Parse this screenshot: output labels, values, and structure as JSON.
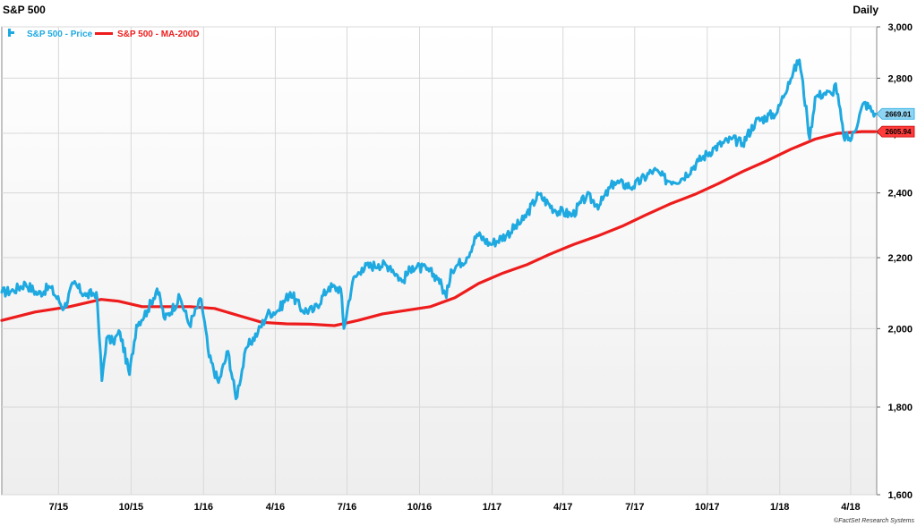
{
  "header": {
    "title": "S&P 500",
    "frequency": "Daily"
  },
  "credit": "©FactSet Research Systems",
  "colors": {
    "price": "#1fa9e1",
    "ma": "#ee1c1c",
    "grid": "#d8d8d8",
    "plot_top": "#ffffff",
    "plot_bottom": "#eeeeee"
  },
  "chart_data": {
    "type": "line",
    "title": "S&P 500",
    "frequency": "Daily",
    "y_scale": "log",
    "ylim": [
      1600,
      3000
    ],
    "y_ticks": [
      1600,
      1800,
      2000,
      2200,
      2400,
      2600,
      2800,
      3000
    ],
    "y_tick_labels": [
      "1,600",
      "1,800",
      "2,000",
      "2,200",
      "2,400",
      "2,600",
      "2,800",
      "3,000"
    ],
    "xlim": [
      "2015-04-20",
      "2018-05-04"
    ],
    "x_ticks": [
      "2015-07-01",
      "2015-10-01",
      "2016-01-01",
      "2016-04-01",
      "2016-07-01",
      "2016-10-01",
      "2017-01-01",
      "2017-04-01",
      "2017-07-01",
      "2017-10-01",
      "2018-01-01",
      "2018-04-01"
    ],
    "x_tick_labels": [
      "7/15",
      "10/15",
      "1/16",
      "4/16",
      "7/16",
      "10/16",
      "1/17",
      "4/17",
      "7/17",
      "10/17",
      "1/18",
      "4/18"
    ],
    "grid": true,
    "legend_position": "top-left",
    "series": [
      {
        "name": "S&P 500 - Price",
        "color": "#1fa9e1",
        "last_value_label": "2669.01",
        "points": [
          [
            "2015-04-20",
            2100
          ],
          [
            "2015-05-05",
            2105
          ],
          [
            "2015-05-20",
            2125
          ],
          [
            "2015-06-05",
            2095
          ],
          [
            "2015-06-20",
            2115
          ],
          [
            "2015-07-08",
            2055
          ],
          [
            "2015-07-20",
            2125
          ],
          [
            "2015-08-05",
            2090
          ],
          [
            "2015-08-18",
            2100
          ],
          [
            "2015-08-20",
            2040
          ],
          [
            "2015-08-25",
            1865
          ],
          [
            "2015-08-31",
            1975
          ],
          [
            "2015-09-08",
            1965
          ],
          [
            "2015-09-17",
            1990
          ],
          [
            "2015-09-29",
            1880
          ],
          [
            "2015-10-08",
            2010
          ],
          [
            "2015-10-22",
            2050
          ],
          [
            "2015-11-03",
            2110
          ],
          [
            "2015-11-13",
            2025
          ],
          [
            "2015-12-02",
            2085
          ],
          [
            "2015-12-14",
            2010
          ],
          [
            "2015-12-29",
            2080
          ],
          [
            "2016-01-08",
            1925
          ],
          [
            "2016-01-20",
            1860
          ],
          [
            "2016-02-01",
            1940
          ],
          [
            "2016-02-11",
            1820
          ],
          [
            "2016-02-25",
            1950
          ],
          [
            "2016-03-10",
            1990
          ],
          [
            "2016-03-22",
            2040
          ],
          [
            "2016-04-05",
            2050
          ],
          [
            "2016-04-20",
            2100
          ],
          [
            "2016-05-05",
            2050
          ],
          [
            "2016-05-20",
            2050
          ],
          [
            "2016-06-08",
            2115
          ],
          [
            "2016-06-23",
            2110
          ],
          [
            "2016-06-27",
            2000
          ],
          [
            "2016-07-08",
            2130
          ],
          [
            "2016-07-20",
            2170
          ],
          [
            "2016-08-10",
            2180
          ],
          [
            "2016-08-25",
            2175
          ],
          [
            "2016-09-09",
            2130
          ],
          [
            "2016-09-22",
            2175
          ],
          [
            "2016-10-10",
            2165
          ],
          [
            "2016-10-25",
            2140
          ],
          [
            "2016-11-04",
            2085
          ],
          [
            "2016-11-10",
            2165
          ],
          [
            "2016-11-30",
            2200
          ],
          [
            "2016-12-13",
            2270
          ],
          [
            "2016-12-30",
            2240
          ],
          [
            "2017-01-20",
            2270
          ],
          [
            "2017-02-10",
            2315
          ],
          [
            "2017-03-01",
            2395
          ],
          [
            "2017-03-22",
            2345
          ],
          [
            "2017-04-13",
            2330
          ],
          [
            "2017-05-01",
            2390
          ],
          [
            "2017-05-17",
            2360
          ],
          [
            "2017-06-05",
            2435
          ],
          [
            "2017-06-29",
            2420
          ],
          [
            "2017-07-25",
            2475
          ],
          [
            "2017-08-11",
            2440
          ],
          [
            "2017-08-29",
            2445
          ],
          [
            "2017-09-20",
            2505
          ],
          [
            "2017-10-10",
            2550
          ],
          [
            "2017-11-01",
            2580
          ],
          [
            "2017-11-15",
            2565
          ],
          [
            "2017-12-01",
            2640
          ],
          [
            "2017-12-29",
            2675
          ],
          [
            "2018-01-12",
            2785
          ],
          [
            "2018-01-26",
            2870
          ],
          [
            "2018-02-05",
            2650
          ],
          [
            "2018-02-08",
            2580
          ],
          [
            "2018-02-15",
            2730
          ],
          [
            "2018-02-27",
            2745
          ],
          [
            "2018-03-08",
            2740
          ],
          [
            "2018-03-13",
            2780
          ],
          [
            "2018-03-23",
            2590
          ],
          [
            "2018-04-02",
            2580
          ],
          [
            "2018-04-18",
            2710
          ],
          [
            "2018-05-02",
            2669
          ]
        ]
      },
      {
        "name": "S&P 500 - MA-200D",
        "color": "#ee1c1c",
        "last_value_label": "2605.94",
        "points": [
          [
            "2015-04-20",
            2022
          ],
          [
            "2015-06-01",
            2045
          ],
          [
            "2015-07-15",
            2060
          ],
          [
            "2015-08-24",
            2080
          ],
          [
            "2015-09-15",
            2075
          ],
          [
            "2015-10-15",
            2060
          ],
          [
            "2015-11-15",
            2060
          ],
          [
            "2015-12-15",
            2060
          ],
          [
            "2016-01-15",
            2055
          ],
          [
            "2016-02-15",
            2035
          ],
          [
            "2016-03-15",
            2017
          ],
          [
            "2016-04-15",
            2013
          ],
          [
            "2016-05-15",
            2012
          ],
          [
            "2016-06-15",
            2008
          ],
          [
            "2016-07-15",
            2022
          ],
          [
            "2016-08-15",
            2040
          ],
          [
            "2016-09-15",
            2050
          ],
          [
            "2016-10-15",
            2060
          ],
          [
            "2016-11-15",
            2085
          ],
          [
            "2016-12-15",
            2125
          ],
          [
            "2017-01-15",
            2155
          ],
          [
            "2017-02-15",
            2180
          ],
          [
            "2017-03-15",
            2210
          ],
          [
            "2017-04-15",
            2240
          ],
          [
            "2017-05-15",
            2265
          ],
          [
            "2017-06-15",
            2295
          ],
          [
            "2017-07-15",
            2330
          ],
          [
            "2017-08-15",
            2365
          ],
          [
            "2017-09-15",
            2395
          ],
          [
            "2017-10-15",
            2430
          ],
          [
            "2017-11-15",
            2470
          ],
          [
            "2017-12-15",
            2505
          ],
          [
            "2018-01-15",
            2545
          ],
          [
            "2018-02-15",
            2580
          ],
          [
            "2018-03-15",
            2600
          ],
          [
            "2018-04-15",
            2606
          ],
          [
            "2018-05-02",
            2606
          ]
        ]
      }
    ]
  }
}
